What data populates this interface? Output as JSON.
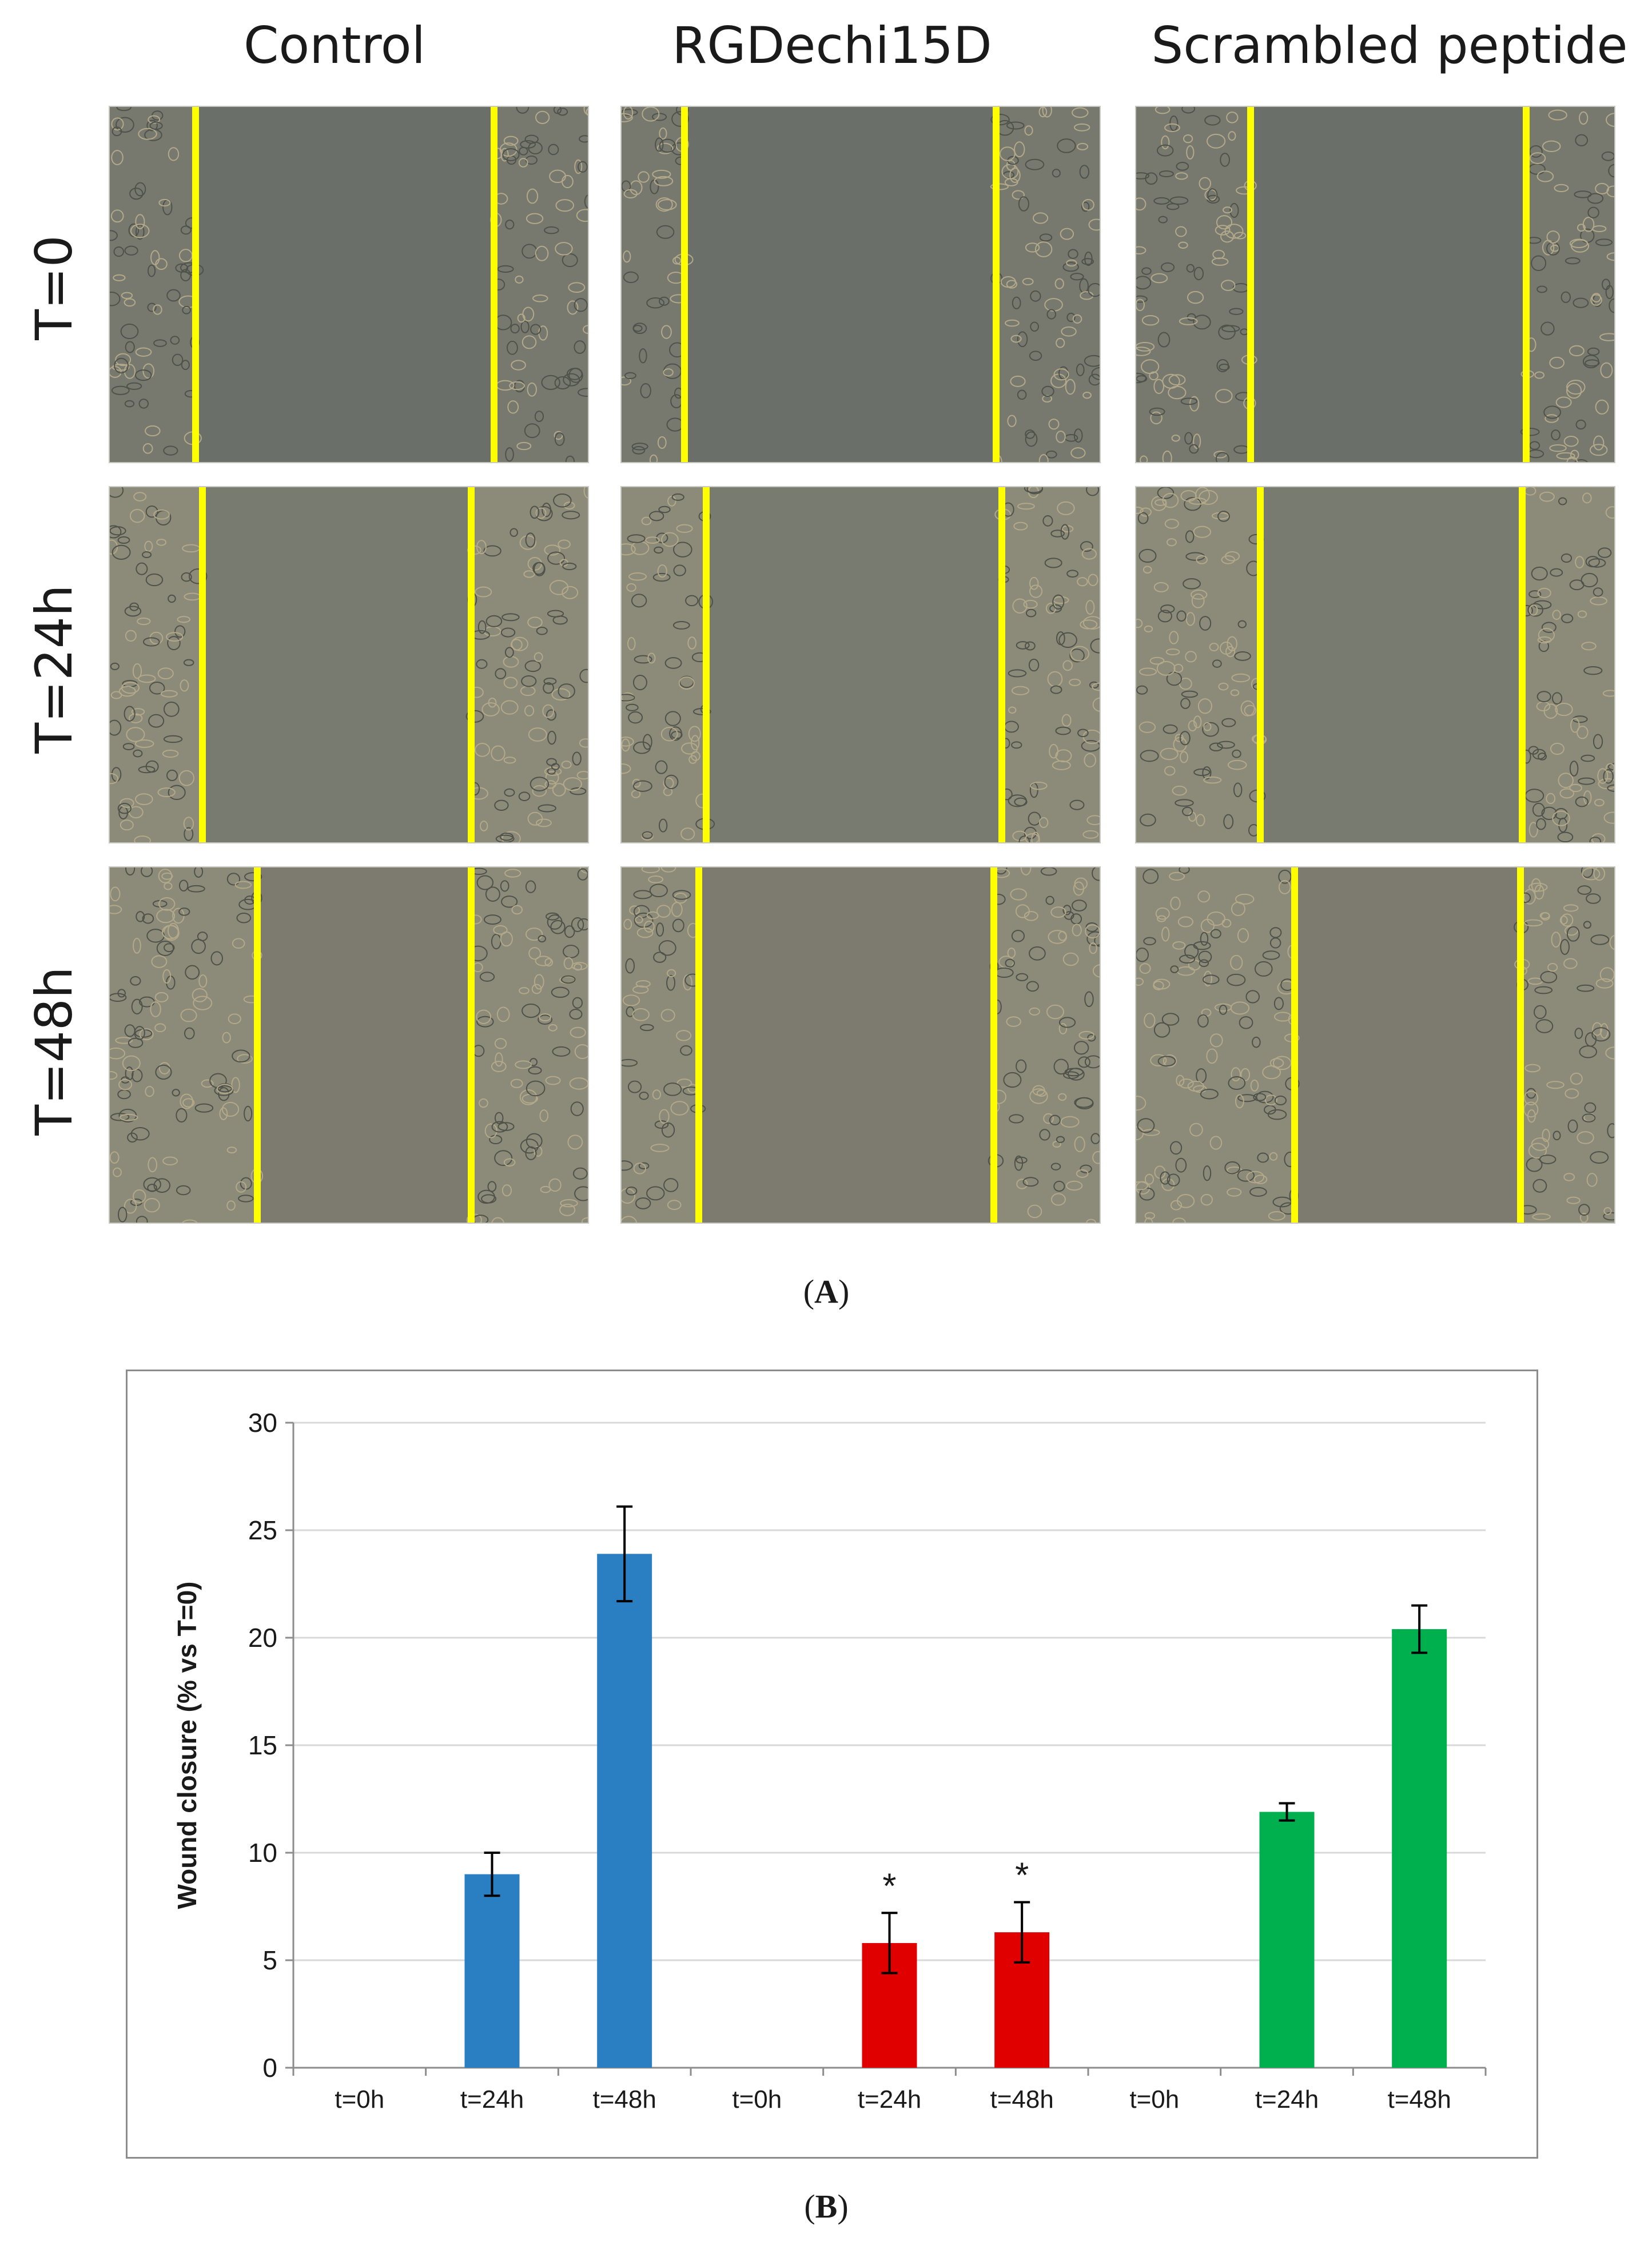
{
  "figure": {
    "columns": [
      "Control",
      "RGDechi15D",
      "Scrambled peptide"
    ],
    "rows": [
      "T=0",
      "T=24h",
      "T=48h"
    ],
    "caption_a": "A",
    "caption_b": "B"
  },
  "colors": {
    "wound_line": "#ffff00",
    "control": "#2a7fc2",
    "rgdechi15d": "#e00000",
    "scrambled": "#00b04f",
    "grid": "#d9d9d9",
    "axis": "#8c8c8c"
  },
  "chart_data": {
    "type": "bar",
    "ylabel": "Wound closure (% vs T=0)",
    "ylim": [
      0,
      30
    ],
    "yticks": [
      0,
      5,
      10,
      15,
      20,
      25,
      30
    ],
    "grid": true,
    "legend": "none",
    "categories": [
      "t=0h",
      "t=24h",
      "t=48h",
      "t=0h",
      "t=24h",
      "t=48h",
      "t=0h",
      "t=24h",
      "t=48h"
    ],
    "values": [
      0,
      9.0,
      23.9,
      0,
      5.8,
      6.3,
      0,
      11.9,
      20.4
    ],
    "errors": [
      0,
      1.0,
      2.2,
      0,
      1.4,
      1.4,
      0,
      0.4,
      1.1
    ],
    "bar_colors": [
      "#2a7fc2",
      "#2a7fc2",
      "#2a7fc2",
      "#e00000",
      "#e00000",
      "#e00000",
      "#00b04f",
      "#00b04f",
      "#00b04f"
    ],
    "annotations": [
      "",
      "",
      "",
      "",
      "*",
      "*",
      "",
      "",
      ""
    ]
  }
}
